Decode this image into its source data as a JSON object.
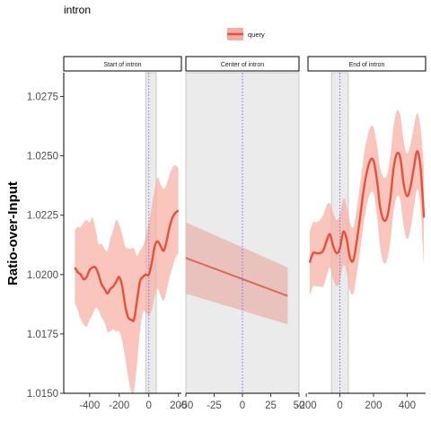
{
  "chart_data": {
    "type": "line",
    "title": "intron",
    "ylabel": "Ratio-over-Input",
    "xlabel": "",
    "ylim": [
      1.015,
      1.0285
    ],
    "yticks": [
      1.015,
      1.0175,
      1.02,
      1.0225,
      1.025,
      1.0275
    ],
    "ytick_labels": [
      "1.0150",
      "1.0175",
      "1.0200",
      "1.0225",
      "1.0250",
      "1.0275"
    ],
    "legend": {
      "placement": "top-center",
      "entries": [
        {
          "label": "query",
          "color": "#e8503a"
        }
      ]
    },
    "colors": {
      "line": "#e8503a",
      "band": "#f6aca1",
      "center_line": "#d9695a",
      "center_band": "#e8b4ae",
      "vline": "#7a6cf0",
      "shade": "#ebebeb"
    },
    "panels": [
      {
        "strip": "Start of intron",
        "xlim": [
          -575,
          220
        ],
        "xticks": [
          -400,
          -200,
          0,
          200
        ],
        "xtick_labels": [
          "-400",
          "-200",
          "0",
          "200"
        ],
        "shade_range": [
          -20,
          50
        ],
        "vline": 0,
        "series": [
          {
            "name": "query",
            "x": [
              -500,
              -480,
              -460,
              -440,
              -420,
              -400,
              -380,
              -360,
              -340,
              -320,
              -300,
              -280,
              -260,
              -240,
              -220,
              -200,
              -180,
              -160,
              -140,
              -120,
              -100,
              -80,
              -60,
              -40,
              -20,
              0,
              20,
              40,
              60,
              80,
              100,
              120,
              140,
              160,
              180,
              200
            ],
            "y": [
              1.0203,
              1.0201,
              1.02,
              1.0198,
              1.0199,
              1.0202,
              1.0203,
              1.0203,
              1.02,
              1.0196,
              1.0194,
              1.0192,
              1.0194,
              1.0195,
              1.0197,
              1.0199,
              1.0195,
              1.0187,
              1.0182,
              1.0181,
              1.0181,
              1.0189,
              1.0197,
              1.0199,
              1.02,
              1.02,
              1.0205,
              1.0212,
              1.0214,
              1.0212,
              1.021,
              1.0214,
              1.022,
              1.0224,
              1.0226,
              1.0227
            ],
            "upper": [
              1.0219,
              1.022,
              1.022,
              1.0222,
              1.0223,
              1.0222,
              1.0224,
              1.0219,
              1.0213,
              1.0213,
              1.0211,
              1.021,
              1.0215,
              1.0219,
              1.0223,
              1.0221,
              1.0217,
              1.0212,
              1.0211,
              1.0211,
              1.0211,
              1.0208,
              1.021,
              1.0212,
              1.0216,
              1.0222,
              1.0229,
              1.0236,
              1.0241,
              1.0238,
              1.0236,
              1.0238,
              1.0242,
              1.0245,
              1.0246,
              1.0245
            ],
            "lower": [
              1.0188,
              1.0185,
              1.0181,
              1.0179,
              1.0178,
              1.0181,
              1.0183,
              1.0186,
              1.0185,
              1.0182,
              1.018,
              1.0176,
              1.0176,
              1.0177,
              1.0176,
              1.0176,
              1.0172,
              1.0165,
              1.0157,
              1.0151,
              1.0151,
              1.0162,
              1.0176,
              1.0184,
              1.0184,
              1.0183,
              1.0185,
              1.0191,
              1.0194,
              1.0191,
              1.0189,
              1.0193,
              1.0199,
              1.0203,
              1.0207,
              1.0209
            ]
          }
        ]
      },
      {
        "strip": "Center of intron",
        "xlim": [
          -50,
          50
        ],
        "xticks": [
          -50,
          -25,
          0,
          25,
          50
        ],
        "xtick_labels": [
          "-50",
          "-25",
          "0",
          "25",
          "50"
        ],
        "shade_range": [
          -50,
          50
        ],
        "vline": 0,
        "series": [
          {
            "name": "query",
            "x": [
              -50,
              40
            ],
            "y": [
              1.0207,
              1.0191
            ],
            "upper": [
              1.0222,
              1.0203
            ],
            "lower": [
              1.0192,
              1.0179
            ]
          }
        ]
      },
      {
        "strip": "End of intron",
        "xlim": [
          -190,
          510
        ],
        "xticks": [
          -200,
          0,
          200,
          400
        ],
        "xtick_labels": [
          "-200",
          "0",
          "200",
          "400"
        ],
        "shade_range": [
          -50,
          50
        ],
        "vline": 0,
        "series": [
          {
            "name": "query",
            "x": [
              -180,
              -160,
              -140,
              -120,
              -100,
              -80,
              -60,
              -40,
              -20,
              0,
              20,
              40,
              60,
              80,
              100,
              120,
              140,
              160,
              180,
              200,
              220,
              240,
              260,
              280,
              300,
              320,
              340,
              360,
              380,
              400,
              420,
              440,
              460,
              480,
              500
            ],
            "y": [
              1.0205,
              1.0209,
              1.0209,
              1.0209,
              1.021,
              1.0214,
              1.0217,
              1.0212,
              1.0209,
              1.0211,
              1.0218,
              1.0215,
              1.0207,
              1.0206,
              1.0214,
              1.0224,
              1.0235,
              1.0243,
              1.0248,
              1.0248,
              1.024,
              1.0228,
              1.0223,
              1.0224,
              1.0232,
              1.0245,
              1.0251,
              1.0249,
              1.0238,
              1.0233,
              1.0237,
              1.0245,
              1.0252,
              1.0245,
              1.0224
            ],
            "upper": [
              1.0218,
              1.0222,
              1.0222,
              1.0223,
              1.0225,
              1.0229,
              1.023,
              1.0226,
              1.0223,
              1.0225,
              1.0232,
              1.0229,
              1.0222,
              1.022,
              1.0228,
              1.0238,
              1.0249,
              1.0257,
              1.0262,
              1.0262,
              1.0255,
              1.0245,
              1.0241,
              1.0242,
              1.025,
              1.0263,
              1.0269,
              1.0267,
              1.0256,
              1.0251,
              1.0255,
              1.0262,
              1.0268,
              1.0262,
              1.0245
            ],
            "lower": [
              1.0191,
              1.0195,
              1.0195,
              1.0195,
              1.0195,
              1.0199,
              1.0203,
              1.0198,
              1.0195,
              1.0197,
              1.0204,
              1.0201,
              1.0193,
              1.0192,
              1.02,
              1.021,
              1.0221,
              1.0229,
              1.0234,
              1.0234,
              1.0225,
              1.0211,
              1.0205,
              1.0206,
              1.0214,
              1.0227,
              1.0233,
              1.0231,
              1.022,
              1.0215,
              1.0219,
              1.0228,
              1.0236,
              1.0228,
              1.0203
            ]
          }
        ]
      }
    ]
  }
}
